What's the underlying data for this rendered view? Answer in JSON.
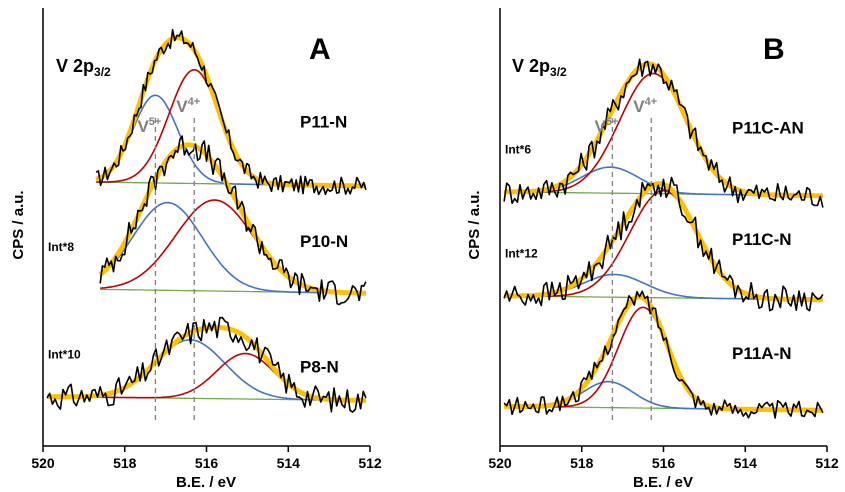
{
  "chart_data": [
    {
      "panel": "A",
      "type": "line",
      "title": "V 2p3/2",
      "title_main": "V 2p",
      "title_sub": "3/2",
      "xlabel": "B.E. / eV",
      "ylabel": "CPS / a.u.",
      "xlim": [
        520,
        512
      ],
      "x_reversed": true,
      "xticks": [
        520,
        518,
        516,
        514,
        512
      ],
      "xtick_labels": [
        "520",
        "518",
        "516",
        "514",
        "512"
      ],
      "reference_lines": [
        {
          "label": "V",
          "sup": "5+",
          "x": 517.25,
          "color": "#7f7f7f",
          "style": "dashed"
        },
        {
          "label": "V",
          "sup": "4+",
          "x": 516.3,
          "color": "#7f7f7f",
          "style": "dashed"
        }
      ],
      "colors": {
        "raw": "#000000",
        "envelope": "#ffc000",
        "v5_component": "#4472c4",
        "v4_component": "#c00000",
        "background": "#70ad47"
      },
      "spectra": [
        {
          "sample": "P11-N",
          "scale_label": "",
          "baseline": 0.72,
          "range": [
            518.7,
            512.1
          ],
          "v5_component": {
            "center": 517.25,
            "height": 0.27,
            "width": 0.55
          },
          "v4_component": {
            "center": 516.3,
            "height": 0.35,
            "width": 0.62
          }
        },
        {
          "sample": "P10-N",
          "scale_label": "Int*8",
          "baseline": 0.39,
          "range": [
            518.6,
            512.1
          ],
          "v5_component": {
            "center": 516.95,
            "height": 0.27,
            "width": 0.85
          },
          "v4_component": {
            "center": 515.8,
            "height": 0.28,
            "width": 0.95
          }
        },
        {
          "sample": "P8-N",
          "scale_label": "Int*10",
          "baseline": 0.06,
          "range": [
            519.9,
            512.1
          ],
          "v5_component": {
            "center": 516.4,
            "height": 0.18,
            "width": 0.85
          },
          "v4_component": {
            "center": 515.05,
            "height": 0.14,
            "width": 0.7
          }
        }
      ]
    },
    {
      "panel": "B",
      "type": "line",
      "title": "V 2p3/2",
      "title_main": "V 2p",
      "title_sub": "3/2",
      "xlabel": "B.E. / eV",
      "ylabel": "CPS / a.u.",
      "xlim": [
        520,
        512
      ],
      "x_reversed": true,
      "xticks": [
        520,
        518,
        516,
        514,
        512
      ],
      "xtick_labels": [
        "520",
        "518",
        "516",
        "514",
        "512"
      ],
      "reference_lines": [
        {
          "label": "V",
          "sup": "5+",
          "x": 517.25,
          "color": "#7f7f7f",
          "style": "dashed"
        },
        {
          "label": "V",
          "sup": "4+",
          "x": 516.3,
          "color": "#7f7f7f",
          "style": "dashed"
        }
      ],
      "colors": {
        "raw": "#000000",
        "envelope": "#ffc000",
        "v5_component": "#4472c4",
        "v4_component": "#c00000",
        "background": "#70ad47"
      },
      "spectra": [
        {
          "sample": "P11C-AN",
          "scale_label": "Int*6",
          "baseline": 0.69,
          "range": [
            519.9,
            512.1
          ],
          "v5_component": {
            "center": 517.3,
            "height": 0.08,
            "width": 0.7
          },
          "v4_component": {
            "center": 516.25,
            "height": 0.37,
            "width": 0.82
          }
        },
        {
          "sample": "P11C-N",
          "scale_label": "Int*12",
          "baseline": 0.37,
          "range": [
            519.9,
            512.1
          ],
          "v5_component": {
            "center": 517.2,
            "height": 0.07,
            "width": 0.75
          },
          "v4_component": {
            "center": 516.0,
            "height": 0.33,
            "width": 0.82
          }
        },
        {
          "sample": "P11A-N",
          "scale_label": "",
          "baseline": 0.03,
          "range": [
            519.9,
            512.1
          ],
          "v5_component": {
            "center": 517.35,
            "height": 0.08,
            "width": 0.6
          },
          "v4_component": {
            "center": 516.5,
            "height": 0.31,
            "width": 0.6
          }
        }
      ]
    }
  ]
}
